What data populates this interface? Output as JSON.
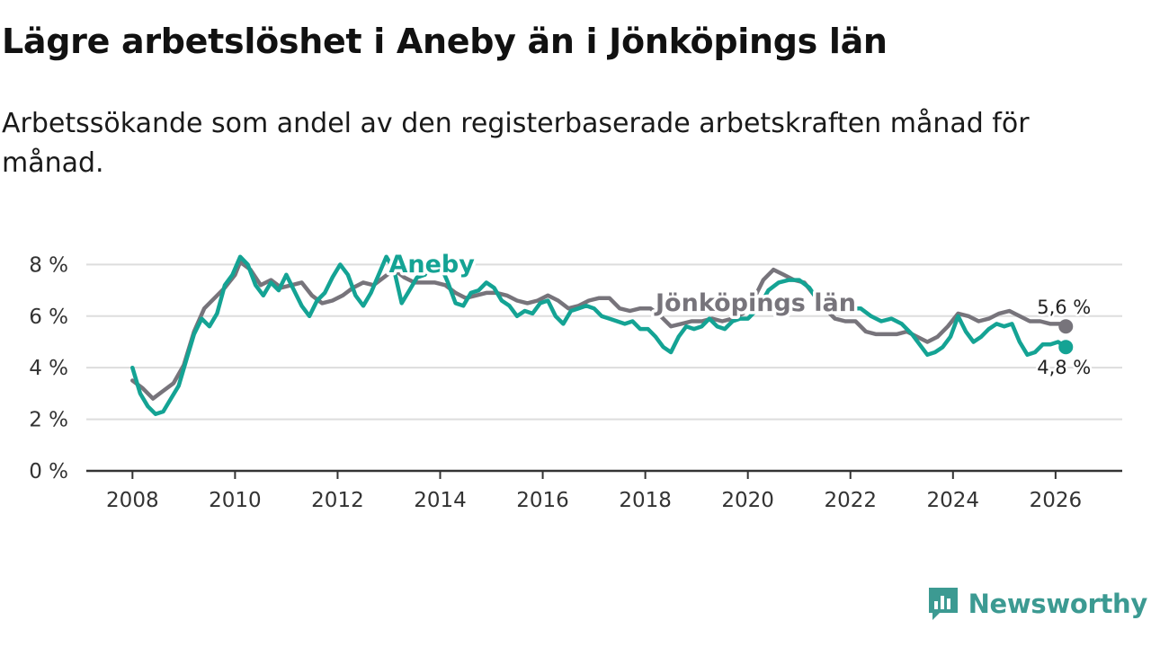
{
  "header": {
    "title": "Lägre arbetslöshet i Aneby än i Jönköpings län",
    "subtitle": "Arbetssökande som andel av den registerbaserade arbetskraften månad för månad."
  },
  "branding": {
    "name": "Newsworthy",
    "icon": "newsworthy-logo-icon"
  },
  "colors": {
    "aneby": "#14a394",
    "jonkoping": "#77747b",
    "grid": "#dddddd",
    "axis": "#333333",
    "brand": "#3c9a92"
  },
  "chart_data": {
    "type": "line",
    "title": "Lägre arbetslöshet i Aneby än i Jönköpings län",
    "subtitle": "Arbetssökande som andel av den registerbaserade arbetskraften månad för månad.",
    "xlabel": "",
    "ylabel": "",
    "x_range": [
      2007.1,
      2027.3
    ],
    "ylim": [
      0,
      8.5
    ],
    "x_ticks": [
      2008,
      2010,
      2012,
      2014,
      2016,
      2018,
      2020,
      2022,
      2024,
      2026
    ],
    "x_tick_labels": [
      "2008",
      "2010",
      "2012",
      "2014",
      "2016",
      "2018",
      "2020",
      "2022",
      "2024",
      "2026"
    ],
    "y_ticks": [
      0,
      2,
      4,
      6,
      8
    ],
    "y_tick_labels": [
      "0 %",
      "2 %",
      "4 %",
      "6 %",
      "8 %"
    ],
    "grid": true,
    "series": [
      {
        "name": "Jönköpings län",
        "label": "Jönköpings län",
        "end_label": "5,6 %",
        "points": [
          [
            2008.0,
            3.5
          ],
          [
            2008.2,
            3.2
          ],
          [
            2008.4,
            2.8
          ],
          [
            2008.6,
            3.1
          ],
          [
            2008.8,
            3.4
          ],
          [
            2009.0,
            4.1
          ],
          [
            2009.2,
            5.4
          ],
          [
            2009.4,
            6.3
          ],
          [
            2009.6,
            6.7
          ],
          [
            2009.8,
            7.1
          ],
          [
            2010.0,
            7.6
          ],
          [
            2010.1,
            8.1
          ],
          [
            2010.3,
            7.8
          ],
          [
            2010.5,
            7.2
          ],
          [
            2010.7,
            7.4
          ],
          [
            2010.9,
            7.1
          ],
          [
            2011.1,
            7.2
          ],
          [
            2011.3,
            7.3
          ],
          [
            2011.5,
            6.8
          ],
          [
            2011.7,
            6.5
          ],
          [
            2011.9,
            6.6
          ],
          [
            2012.1,
            6.8
          ],
          [
            2012.3,
            7.1
          ],
          [
            2012.5,
            7.3
          ],
          [
            2012.7,
            7.2
          ],
          [
            2012.9,
            7.5
          ],
          [
            2013.1,
            7.8
          ],
          [
            2013.3,
            7.5
          ],
          [
            2013.5,
            7.3
          ],
          [
            2013.7,
            7.3
          ],
          [
            2013.9,
            7.3
          ],
          [
            2014.1,
            7.2
          ],
          [
            2014.3,
            6.9
          ],
          [
            2014.5,
            6.7
          ],
          [
            2014.7,
            6.8
          ],
          [
            2014.9,
            6.9
          ],
          [
            2015.1,
            6.9
          ],
          [
            2015.3,
            6.8
          ],
          [
            2015.5,
            6.6
          ],
          [
            2015.7,
            6.5
          ],
          [
            2015.9,
            6.6
          ],
          [
            2016.1,
            6.8
          ],
          [
            2016.3,
            6.6
          ],
          [
            2016.5,
            6.3
          ],
          [
            2016.7,
            6.4
          ],
          [
            2016.9,
            6.6
          ],
          [
            2017.1,
            6.7
          ],
          [
            2017.3,
            6.7
          ],
          [
            2017.5,
            6.3
          ],
          [
            2017.7,
            6.2
          ],
          [
            2017.9,
            6.3
          ],
          [
            2018.1,
            6.3
          ],
          [
            2018.3,
            6.0
          ],
          [
            2018.5,
            5.6
          ],
          [
            2018.7,
            5.7
          ],
          [
            2018.9,
            5.8
          ],
          [
            2019.1,
            5.8
          ],
          [
            2019.3,
            5.9
          ],
          [
            2019.5,
            5.8
          ],
          [
            2019.7,
            5.9
          ],
          [
            2019.9,
            6.1
          ],
          [
            2020.1,
            6.6
          ],
          [
            2020.3,
            7.4
          ],
          [
            2020.5,
            7.8
          ],
          [
            2020.7,
            7.6
          ],
          [
            2020.9,
            7.4
          ],
          [
            2021.1,
            7.3
          ],
          [
            2021.3,
            6.8
          ],
          [
            2021.5,
            6.3
          ],
          [
            2021.7,
            5.9
          ],
          [
            2021.9,
            5.8
          ],
          [
            2022.1,
            5.8
          ],
          [
            2022.3,
            5.4
          ],
          [
            2022.5,
            5.3
          ],
          [
            2022.7,
            5.3
          ],
          [
            2022.9,
            5.3
          ],
          [
            2023.1,
            5.4
          ],
          [
            2023.3,
            5.2
          ],
          [
            2023.5,
            5.0
          ],
          [
            2023.7,
            5.2
          ],
          [
            2023.9,
            5.6
          ],
          [
            2024.1,
            6.1
          ],
          [
            2024.3,
            6.0
          ],
          [
            2024.5,
            5.8
          ],
          [
            2024.7,
            5.9
          ],
          [
            2024.9,
            6.1
          ],
          [
            2025.1,
            6.2
          ],
          [
            2025.3,
            6.0
          ],
          [
            2025.5,
            5.8
          ],
          [
            2025.7,
            5.8
          ],
          [
            2025.9,
            5.7
          ],
          [
            2026.1,
            5.7
          ],
          [
            2026.2,
            5.6
          ]
        ]
      },
      {
        "name": "Aneby",
        "label": "Aneby",
        "end_label": "4,8 %",
        "points": [
          [
            2008.0,
            4.0
          ],
          [
            2008.15,
            3.0
          ],
          [
            2008.3,
            2.5
          ],
          [
            2008.45,
            2.2
          ],
          [
            2008.6,
            2.3
          ],
          [
            2008.75,
            2.8
          ],
          [
            2008.9,
            3.3
          ],
          [
            2009.05,
            4.3
          ],
          [
            2009.2,
            5.3
          ],
          [
            2009.35,
            5.9
          ],
          [
            2009.5,
            5.6
          ],
          [
            2009.65,
            6.1
          ],
          [
            2009.8,
            7.2
          ],
          [
            2009.95,
            7.6
          ],
          [
            2010.1,
            8.3
          ],
          [
            2010.25,
            8.0
          ],
          [
            2010.4,
            7.2
          ],
          [
            2010.55,
            6.8
          ],
          [
            2010.7,
            7.3
          ],
          [
            2010.85,
            7.0
          ],
          [
            2011.0,
            7.6
          ],
          [
            2011.15,
            7.0
          ],
          [
            2011.3,
            6.4
          ],
          [
            2011.45,
            6.0
          ],
          [
            2011.6,
            6.6
          ],
          [
            2011.75,
            6.9
          ],
          [
            2011.9,
            7.5
          ],
          [
            2012.05,
            8.0
          ],
          [
            2012.2,
            7.6
          ],
          [
            2012.35,
            6.8
          ],
          [
            2012.5,
            6.4
          ],
          [
            2012.65,
            6.9
          ],
          [
            2012.8,
            7.6
          ],
          [
            2012.95,
            8.3
          ],
          [
            2013.1,
            7.8
          ],
          [
            2013.25,
            6.5
          ],
          [
            2013.4,
            7.0
          ],
          [
            2013.55,
            7.5
          ],
          [
            2013.7,
            7.6
          ],
          [
            2013.85,
            8.1
          ],
          [
            2014.0,
            8.0
          ],
          [
            2014.15,
            7.3
          ],
          [
            2014.3,
            6.5
          ],
          [
            2014.45,
            6.4
          ],
          [
            2014.6,
            6.9
          ],
          [
            2014.75,
            7.0
          ],
          [
            2014.9,
            7.3
          ],
          [
            2015.05,
            7.1
          ],
          [
            2015.2,
            6.6
          ],
          [
            2015.35,
            6.4
          ],
          [
            2015.5,
            6.0
          ],
          [
            2015.65,
            6.2
          ],
          [
            2015.8,
            6.1
          ],
          [
            2015.95,
            6.5
          ],
          [
            2016.1,
            6.6
          ],
          [
            2016.25,
            6.0
          ],
          [
            2016.4,
            5.7
          ],
          [
            2016.55,
            6.2
          ],
          [
            2016.7,
            6.3
          ],
          [
            2016.85,
            6.4
          ],
          [
            2017.0,
            6.3
          ],
          [
            2017.15,
            6.0
          ],
          [
            2017.3,
            5.9
          ],
          [
            2017.45,
            5.8
          ],
          [
            2017.6,
            5.7
          ],
          [
            2017.75,
            5.8
          ],
          [
            2017.9,
            5.5
          ],
          [
            2018.05,
            5.5
          ],
          [
            2018.2,
            5.2
          ],
          [
            2018.35,
            4.8
          ],
          [
            2018.5,
            4.6
          ],
          [
            2018.65,
            5.2
          ],
          [
            2018.8,
            5.6
          ],
          [
            2018.95,
            5.5
          ],
          [
            2019.1,
            5.6
          ],
          [
            2019.25,
            5.9
          ],
          [
            2019.4,
            5.6
          ],
          [
            2019.55,
            5.5
          ],
          [
            2019.7,
            5.8
          ],
          [
            2019.85,
            5.9
          ],
          [
            2020.0,
            5.9
          ],
          [
            2020.2,
            6.3
          ],
          [
            2020.4,
            7.0
          ],
          [
            2020.6,
            7.3
          ],
          [
            2020.8,
            7.4
          ],
          [
            2021.0,
            7.4
          ],
          [
            2021.2,
            7.1
          ],
          [
            2021.4,
            6.5
          ],
          [
            2021.6,
            6.2
          ],
          [
            2021.8,
            6.3
          ],
          [
            2022.0,
            6.3
          ],
          [
            2022.2,
            6.3
          ],
          [
            2022.4,
            6.0
          ],
          [
            2022.6,
            5.8
          ],
          [
            2022.8,
            5.9
          ],
          [
            2023.0,
            5.7
          ],
          [
            2023.2,
            5.3
          ],
          [
            2023.35,
            4.9
          ],
          [
            2023.5,
            4.5
          ],
          [
            2023.65,
            4.6
          ],
          [
            2023.8,
            4.8
          ],
          [
            2023.95,
            5.2
          ],
          [
            2024.1,
            6.0
          ],
          [
            2024.25,
            5.4
          ],
          [
            2024.4,
            5.0
          ],
          [
            2024.55,
            5.2
          ],
          [
            2024.7,
            5.5
          ],
          [
            2024.85,
            5.7
          ],
          [
            2025.0,
            5.6
          ],
          [
            2025.15,
            5.7
          ],
          [
            2025.3,
            5.0
          ],
          [
            2025.45,
            4.5
          ],
          [
            2025.6,
            4.6
          ],
          [
            2025.75,
            4.9
          ],
          [
            2025.9,
            4.9
          ],
          [
            2026.05,
            5.0
          ],
          [
            2026.2,
            4.8
          ]
        ]
      }
    ]
  }
}
